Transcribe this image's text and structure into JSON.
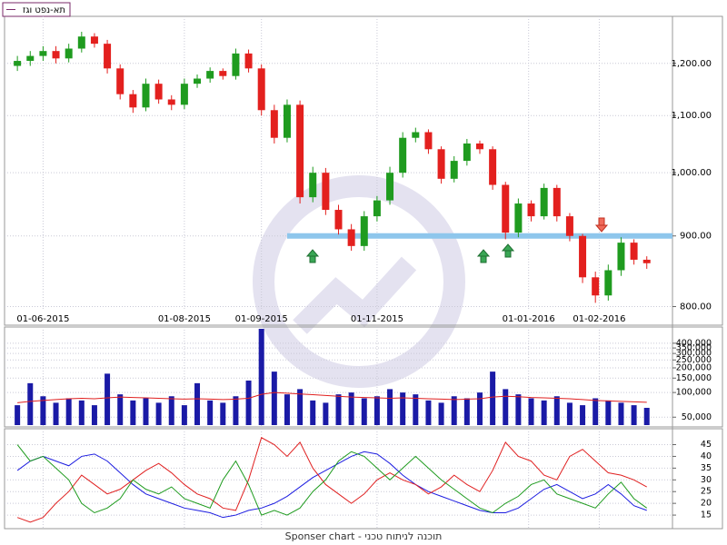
{
  "chart_data": [
    {
      "type": "candlestick",
      "title": "תא-נפט וגז",
      "log": true,
      "grid": true,
      "up_color": "#1f9b1f",
      "down_color": "#e3201e",
      "support_level": 900,
      "support_color": "#8ec6ec",
      "x": [
        0,
        1,
        2,
        3,
        4,
        5,
        6,
        7,
        8,
        9,
        10,
        11,
        12,
        13,
        14,
        15,
        16,
        17,
        18,
        19,
        20,
        21,
        22,
        23,
        24,
        25,
        26,
        27,
        28,
        29,
        30,
        31,
        32,
        33,
        34,
        35,
        36,
        37,
        38,
        39,
        40,
        41,
        42,
        43,
        44,
        45,
        46,
        47,
        48,
        49
      ],
      "open": [
        1195,
        1205,
        1215,
        1225,
        1210,
        1230,
        1255,
        1240,
        1190,
        1140,
        1115,
        1160,
        1130,
        1120,
        1160,
        1170,
        1185,
        1175,
        1220,
        1190,
        1110,
        1060,
        1120,
        960,
        1000,
        940,
        910,
        885,
        930,
        955,
        1000,
        1060,
        1070,
        1040,
        990,
        1020,
        1050,
        1040,
        980,
        905,
        950,
        930,
        975,
        930,
        900,
        840,
        815,
        850,
        890,
        865
      ],
      "high": [
        1215,
        1225,
        1235,
        1235,
        1240,
        1265,
        1262,
        1248,
        1198,
        1148,
        1170,
        1168,
        1138,
        1170,
        1178,
        1192,
        1190,
        1230,
        1228,
        1198,
        1120,
        1130,
        1128,
        1010,
        1008,
        948,
        918,
        938,
        962,
        1010,
        1070,
        1078,
        1075,
        1045,
        1028,
        1058,
        1055,
        1045,
        985,
        958,
        955,
        982,
        980,
        935,
        903,
        848,
        858,
        898,
        895,
        870
      ],
      "low": [
        1185,
        1195,
        1205,
        1200,
        1202,
        1222,
        1232,
        1180,
        1130,
        1105,
        1108,
        1122,
        1110,
        1112,
        1152,
        1162,
        1168,
        1168,
        1182,
        1100,
        1050,
        1052,
        950,
        952,
        932,
        902,
        878,
        878,
        922,
        948,
        992,
        1052,
        1032,
        982,
        984,
        1012,
        1032,
        972,
        895,
        898,
        922,
        925,
        922,
        892,
        832,
        805,
        808,
        842,
        858,
        852
      ],
      "close": [
        1205,
        1215,
        1225,
        1210,
        1230,
        1255,
        1240,
        1190,
        1140,
        1115,
        1160,
        1130,
        1120,
        1160,
        1170,
        1185,
        1175,
        1220,
        1190,
        1110,
        1060,
        1120,
        960,
        1000,
        940,
        910,
        885,
        930,
        955,
        1000,
        1060,
        1070,
        1040,
        990,
        1020,
        1050,
        1040,
        980,
        905,
        950,
        930,
        975,
        930,
        900,
        840,
        815,
        850,
        890,
        865,
        860
      ],
      "ylim": [
        797,
        1294
      ],
      "yticks": [
        {
          "value": 800,
          "label": "800.00"
        },
        {
          "value": 900,
          "label": "900.00"
        },
        {
          "value": 1000,
          "label": "1,000.00"
        },
        {
          "value": 1100,
          "label": "1,100.00"
        },
        {
          "value": 1200,
          "label": "1,200.00"
        }
      ],
      "xlim": [
        -1,
        51
      ],
      "xticks": [
        {
          "value": 2,
          "label": "01-06-2015"
        },
        {
          "value": 13,
          "label": "01-08-2015"
        },
        {
          "value": 19,
          "label": "01-09-2015"
        },
        {
          "value": 28,
          "label": "01-11-2015"
        },
        {
          "value": 39.8,
          "label": "01-01-2016"
        },
        {
          "value": 45.3,
          "label": "01-02-2016"
        }
      ]
    },
    {
      "type": "bar",
      "log": true,
      "color": "#1a1aa6",
      "x": [
        0,
        1,
        2,
        3,
        4,
        5,
        6,
        7,
        8,
        9,
        10,
        11,
        12,
        13,
        14,
        15,
        16,
        17,
        18,
        19,
        20,
        21,
        22,
        23,
        24,
        25,
        26,
        27,
        28,
        29,
        30,
        31,
        32,
        33,
        34,
        35,
        36,
        37,
        38,
        39,
        40,
        41,
        42,
        43,
        44,
        45,
        46,
        47,
        48,
        49
      ],
      "values": [
        70000,
        130000,
        90000,
        75000,
        85000,
        80000,
        70000,
        170000,
        95000,
        80000,
        85000,
        75000,
        90000,
        70000,
        130000,
        80000,
        75000,
        90000,
        140000,
        600000,
        180000,
        95000,
        110000,
        80000,
        75000,
        95000,
        100000,
        85000,
        90000,
        110000,
        100000,
        95000,
        80000,
        75000,
        90000,
        85000,
        100000,
        180000,
        110000,
        95000,
        85000,
        80000,
        90000,
        75000,
        70000,
        85000,
        80000,
        75000,
        70000,
        65000
      ],
      "average": {
        "color": "#e02020",
        "values": [
          75000,
          78000,
          80000,
          82000,
          84000,
          85000,
          84000,
          86000,
          88000,
          87000,
          86000,
          85000,
          84000,
          83000,
          84000,
          83000,
          82000,
          83000,
          85000,
          95000,
          100000,
          98000,
          96000,
          94000,
          92000,
          90000,
          88000,
          87000,
          86000,
          85000,
          86000,
          85000,
          84000,
          83000,
          82000,
          83000,
          84000,
          88000,
          90000,
          89000,
          87000,
          86000,
          85000,
          84000,
          82000,
          80000,
          79000,
          78000,
          77000,
          76000
        ]
      },
      "ylim": [
        40000,
        600000
      ],
      "xlim": [
        -1,
        51
      ],
      "yticks": [
        {
          "value": 50000,
          "label": "50,000"
        },
        {
          "value": 100000,
          "label": "100,000"
        },
        {
          "value": 150000,
          "label": "150,000"
        },
        {
          "value": 200000,
          "label": "200,000"
        },
        {
          "value": 250000,
          "label": "250,000"
        },
        {
          "value": 300000,
          "label": "300,000"
        },
        {
          "value": 350000,
          "label": "350,000"
        },
        {
          "value": 400000,
          "label": "400,000"
        }
      ]
    },
    {
      "type": "line",
      "x": [
        0,
        1,
        2,
        3,
        4,
        5,
        6,
        7,
        8,
        9,
        10,
        11,
        12,
        13,
        14,
        15,
        16,
        17,
        18,
        19,
        20,
        21,
        22,
        23,
        24,
        25,
        26,
        27,
        28,
        29,
        30,
        31,
        32,
        33,
        34,
        35,
        36,
        37,
        38,
        39,
        40,
        41,
        42,
        43,
        44,
        45,
        46,
        47,
        48,
        49
      ],
      "series": [
        {
          "color": "#1c1ce0",
          "values": [
            34,
            38,
            40,
            38,
            36,
            40,
            41,
            38,
            33,
            28,
            24,
            22,
            20,
            18,
            17,
            16,
            14,
            15,
            17,
            18,
            20,
            23,
            27,
            31,
            34,
            37,
            40,
            42,
            41,
            37,
            32,
            28,
            25,
            23,
            21,
            19,
            17,
            16,
            16,
            18,
            22,
            26,
            28,
            25,
            22,
            24,
            28,
            24,
            19,
            17
          ]
        },
        {
          "color": "#e02020",
          "values": [
            14,
            12,
            14,
            20,
            25,
            32,
            28,
            24,
            26,
            30,
            34,
            37,
            33,
            28,
            24,
            22,
            18,
            17,
            30,
            48,
            45,
            40,
            46,
            35,
            28,
            24,
            20,
            24,
            30,
            33,
            30,
            28,
            24,
            27,
            32,
            28,
            25,
            34,
            46,
            40,
            38,
            32,
            30,
            40,
            43,
            38,
            33,
            32,
            30,
            27
          ]
        },
        {
          "color": "#1f9b1f",
          "values": [
            45,
            38,
            40,
            35,
            30,
            20,
            16,
            18,
            22,
            30,
            26,
            24,
            27,
            22,
            20,
            18,
            30,
            38,
            28,
            15,
            17,
            15,
            18,
            25,
            30,
            38,
            42,
            40,
            35,
            30,
            35,
            40,
            35,
            30,
            26,
            22,
            18,
            16,
            20,
            23,
            28,
            30,
            24,
            22,
            20,
            18,
            24,
            29,
            22,
            18
          ]
        }
      ],
      "ylim": [
        10,
        51
      ],
      "xlim": [
        -1,
        51
      ],
      "yticks": [
        15,
        20,
        25,
        30,
        35,
        40,
        45
      ]
    }
  ],
  "footer": "Sponser chart - תוכנה לניתוח טכני"
}
